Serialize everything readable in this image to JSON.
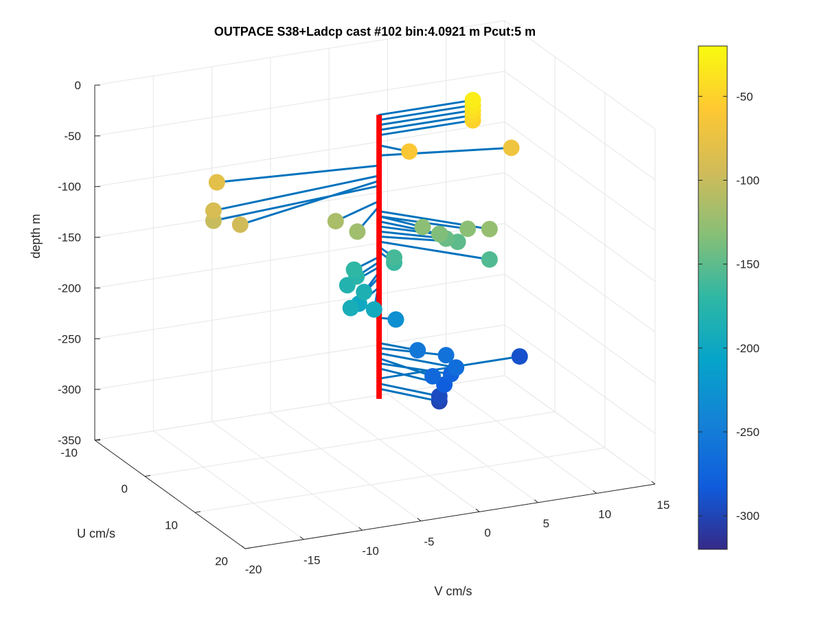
{
  "chart_data": {
    "type": "scatter",
    "title": "OUTPACE S38+Ladcp cast #102 bin:4.0921 m  Pcut:5 m",
    "xlabel": "U cm/s",
    "ylabel": "V cm/s",
    "zlabel": "depth m",
    "xlim": [
      -10,
      20
    ],
    "ylim": [
      -20,
      15
    ],
    "zlim": [
      -350,
      0
    ],
    "x_ticks": [
      "-10",
      "0",
      "10",
      "20"
    ],
    "y_ticks": [
      "-20",
      "-15",
      "-10",
      "-5",
      "0",
      "5",
      "10",
      "15"
    ],
    "z_ticks": [
      "0",
      "-50",
      "-100",
      "-150",
      "-200",
      "-250",
      "-300",
      "-350"
    ],
    "grid": true,
    "colorbar": {
      "ticks": [
        "-50",
        "-100",
        "-150",
        "-200",
        "-250",
        "-300"
      ],
      "range": [
        -320,
        -20
      ],
      "colormap": "parula",
      "colors": [
        "#352a87",
        "#0f5cdd",
        "#1481d6",
        "#06a4ca",
        "#2eb7a4",
        "#87bf77",
        "#d1bb59",
        "#fec832",
        "#f9fb0e"
      ]
    },
    "series": [
      {
        "values": [
          {
            "depth": -30,
            "u": 0.0,
            "v": 8.0
          },
          {
            "depth": -35,
            "u": 0.0,
            "v": 8.0
          },
          {
            "depth": -40,
            "u": 0.0,
            "v": 8.0
          },
          {
            "depth": -45,
            "u": 0.0,
            "v": 8.0
          },
          {
            "depth": -50,
            "u": 0.0,
            "v": 8.0
          },
          {
            "depth": -70,
            "u": 3.0,
            "v": 10.0
          },
          {
            "depth": -60,
            "u": 2.5,
            "v": 1.5
          },
          {
            "depth": -80,
            "u": -2.0,
            "v": -13.0
          },
          {
            "depth": -90,
            "u": 2.0,
            "v": -15.0
          },
          {
            "depth": -95,
            "u": 5.0,
            "v": -14.0
          },
          {
            "depth": -100,
            "u": 2.0,
            "v": -15.0
          },
          {
            "depth": -115,
            "u": 3.0,
            "v": -5.0
          },
          {
            "depth": -120,
            "u": 5.0,
            "v": -4.0
          },
          {
            "depth": -125,
            "u": 8.0,
            "v": 6.0
          },
          {
            "depth": -130,
            "u": 4.0,
            "v": 2.0
          },
          {
            "depth": -130,
            "u": 6.0,
            "v": 5.0
          },
          {
            "depth": -135,
            "u": 5.0,
            "v": 3.0
          },
          {
            "depth": -140,
            "u": 4.0,
            "v": 3.5
          },
          {
            "depth": -145,
            "u": 4.0,
            "v": 4.0
          },
          {
            "depth": -150,
            "u": 4.0,
            "v": 5.0
          },
          {
            "depth": -155,
            "u": 8.0,
            "v": 6.0
          },
          {
            "depth": -160,
            "u": 3.0,
            "v": 0.0
          },
          {
            "depth": -165,
            "u": 3.0,
            "v": 0.0
          },
          {
            "depth": -170,
            "u": 2.0,
            "v": -3.0
          },
          {
            "depth": -175,
            "u": 2.5,
            "v": -3.0
          },
          {
            "depth": -180,
            "u": 3.0,
            "v": -4.0
          },
          {
            "depth": -185,
            "u": 4.0,
            "v": -3.0
          },
          {
            "depth": -190,
            "u": 6.0,
            "v": -5.0
          },
          {
            "depth": -195,
            "u": 6.0,
            "v": -3.0
          },
          {
            "depth": -200,
            "u": 3.0,
            "v": -3.0
          },
          {
            "depth": -230,
            "u": 1.0,
            "v": 1.0
          },
          {
            "depth": -255,
            "u": 3.0,
            "v": 2.0
          },
          {
            "depth": -260,
            "u": 4.0,
            "v": 4.0
          },
          {
            "depth": -265,
            "u": 6.0,
            "v": 4.0
          },
          {
            "depth": -270,
            "u": 6.0,
            "v": 2.0
          },
          {
            "depth": -275,
            "u": 5.0,
            "v": 4.0
          },
          {
            "depth": -280,
            "u": 6.0,
            "v": 3.0
          },
          {
            "depth": -290,
            "u": 0.0,
            "v": 12.0
          },
          {
            "depth": -295,
            "u": 5.0,
            "v": 3.0
          },
          {
            "depth": -300,
            "u": 5.0,
            "v": 3.0
          }
        ]
      }
    ],
    "red_profile": {
      "u": 0,
      "v": 0,
      "depth_range": [
        -30,
        -310
      ]
    }
  }
}
